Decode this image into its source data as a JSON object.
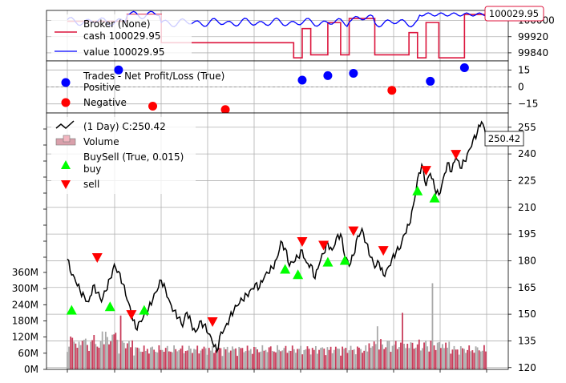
{
  "chart_data": [
    {
      "type": "line",
      "panel": "broker",
      "legend": [
        "Broker (None)",
        "cash 100029.95",
        "value 100029.95"
      ],
      "series": [
        {
          "name": "cash 100029.95",
          "color": "#dc143c"
        },
        {
          "name": "value 100029.95",
          "color": "#0000ff"
        }
      ],
      "cash_steps": [
        [
          0,
          99996
        ],
        [
          14,
          99996
        ],
        [
          14,
          100030
        ],
        [
          22,
          100030
        ],
        [
          22,
          99890
        ],
        [
          53,
          99890
        ],
        [
          53,
          99815
        ],
        [
          55,
          99815
        ],
        [
          55,
          99960
        ],
        [
          57,
          99960
        ],
        [
          57,
          99830
        ],
        [
          61,
          99830
        ],
        [
          61,
          99990
        ],
        [
          64,
          99990
        ],
        [
          64,
          99830
        ],
        [
          66,
          99830
        ],
        [
          66,
          100010
        ],
        [
          72,
          100010
        ],
        [
          72,
          99830
        ],
        [
          80,
          99830
        ],
        [
          80,
          99940
        ],
        [
          82,
          99940
        ],
        [
          82,
          99815
        ],
        [
          84,
          99815
        ],
        [
          84,
          99990
        ],
        [
          87,
          99990
        ],
        [
          87,
          99815
        ],
        [
          93,
          99815
        ],
        [
          93,
          100030
        ],
        [
          100,
          100030
        ]
      ],
      "last_value_label": "100029.95",
      "yticks": [
        99840,
        99920,
        100000
      ],
      "ylim": [
        99800,
        100050
      ]
    },
    {
      "type": "scatter",
      "panel": "trades",
      "title": "Trades - Net Profit/Loss (True)",
      "legend": [
        "Positive",
        "Negative"
      ],
      "positive_color": "#0000ff",
      "negative_color": "#ff0000",
      "points": [
        [
          12,
          15
        ],
        [
          20,
          -17
        ],
        [
          37,
          -20
        ],
        [
          55,
          6
        ],
        [
          61,
          10
        ],
        [
          67,
          12
        ],
        [
          76,
          -3
        ],
        [
          85,
          5
        ],
        [
          93,
          17
        ]
      ],
      "yticks": [
        -15,
        0,
        15
      ],
      "ylim": [
        -23,
        23
      ]
    },
    {
      "type": "line",
      "panel": "price",
      "legend": [
        "(1 Day) C:250.42",
        "Volume",
        "BuySell (True, 0.015)",
        "buy",
        "sell"
      ],
      "colors": {
        "close": "#000000",
        "volume_up": "#a9a9a9",
        "volume_down": "#c83c5a",
        "buy": "#00ff00",
        "sell": "#ff0000"
      },
      "close_anchors": [
        [
          0,
          181
        ],
        [
          1,
          172
        ],
        [
          2,
          168
        ],
        [
          3,
          163
        ],
        [
          4,
          160
        ],
        [
          5,
          157
        ],
        [
          6,
          166
        ],
        [
          7,
          162
        ],
        [
          8,
          157
        ],
        [
          9,
          163
        ],
        [
          10,
          170
        ],
        [
          11,
          178
        ],
        [
          12,
          174
        ],
        [
          13,
          167
        ],
        [
          14,
          158
        ],
        [
          15,
          150
        ],
        [
          16,
          142
        ],
        [
          17,
          146
        ],
        [
          18,
          150
        ],
        [
          19,
          153
        ],
        [
          20,
          158
        ],
        [
          21,
          163
        ],
        [
          22,
          169
        ],
        [
          23,
          164
        ],
        [
          24,
          157
        ],
        [
          25,
          152
        ],
        [
          26,
          148
        ],
        [
          27,
          143
        ],
        [
          28,
          151
        ],
        [
          29,
          145
        ],
        [
          30,
          140
        ],
        [
          31,
          146
        ],
        [
          32,
          144
        ],
        [
          33,
          139
        ],
        [
          34,
          134
        ],
        [
          35,
          129
        ],
        [
          36,
          140
        ],
        [
          37,
          143
        ],
        [
          38,
          148
        ],
        [
          39,
          152
        ],
        [
          40,
          155
        ],
        [
          41,
          158
        ],
        [
          42,
          161
        ],
        [
          43,
          164
        ],
        [
          44,
          167
        ],
        [
          45,
          165
        ],
        [
          46,
          170
        ],
        [
          47,
          173
        ],
        [
          48,
          176
        ],
        [
          49,
          181
        ],
        [
          50,
          191
        ],
        [
          51,
          187
        ],
        [
          52,
          177
        ],
        [
          53,
          179
        ],
        [
          54,
          182
        ],
        [
          55,
          186
        ],
        [
          56,
          179
        ],
        [
          57,
          178
        ],
        [
          58,
          170
        ],
        [
          59,
          178
        ],
        [
          60,
          184
        ],
        [
          61,
          190
        ],
        [
          62,
          186
        ],
        [
          63,
          193
        ],
        [
          64,
          195
        ],
        [
          65,
          182
        ],
        [
          66,
          177
        ],
        [
          67,
          183
        ],
        [
          68,
          194
        ],
        [
          69,
          198
        ],
        [
          70,
          190
        ],
        [
          71,
          182
        ],
        [
          72,
          176
        ],
        [
          73,
          179
        ],
        [
          74,
          172
        ],
        [
          75,
          176
        ],
        [
          76,
          181
        ],
        [
          77,
          185
        ],
        [
          78,
          187
        ],
        [
          79,
          195
        ],
        [
          80,
          200
        ],
        [
          81,
          211
        ],
        [
          82,
          226
        ],
        [
          83,
          234
        ],
        [
          84,
          222
        ],
        [
          85,
          229
        ],
        [
          86,
          221
        ],
        [
          87,
          217
        ],
        [
          88,
          226
        ],
        [
          89,
          235
        ],
        [
          90,
          230
        ],
        [
          91,
          238
        ],
        [
          92,
          232
        ],
        [
          93,
          236
        ],
        [
          94,
          242
        ],
        [
          95,
          248
        ],
        [
          96,
          252
        ],
        [
          97,
          258
        ],
        [
          98,
          250.42
        ]
      ],
      "buy_markers": [
        [
          1,
          152
        ],
        [
          10,
          154
        ],
        [
          18,
          152
        ],
        [
          51,
          175
        ],
        [
          54,
          172
        ],
        [
          61,
          179
        ],
        [
          65,
          180
        ],
        [
          82,
          219
        ],
        [
          86,
          215
        ]
      ],
      "sell_markers": [
        [
          7,
          182
        ],
        [
          15,
          150
        ],
        [
          34,
          146
        ],
        [
          55,
          191
        ],
        [
          60,
          189
        ],
        [
          67,
          197
        ],
        [
          74,
          186
        ],
        [
          84,
          231
        ],
        [
          91,
          240
        ]
      ],
      "last_close_label": "250.42",
      "price_yticks": [
        120,
        135,
        150,
        165,
        180,
        195,
        210,
        225,
        240,
        255
      ],
      "price_ylim": [
        119,
        263
      ],
      "volume_yticks": [
        "0M",
        "60M",
        "120M",
        "180M",
        "240M",
        "300M",
        "360M"
      ],
      "volume_max_label": "360M"
    }
  ]
}
